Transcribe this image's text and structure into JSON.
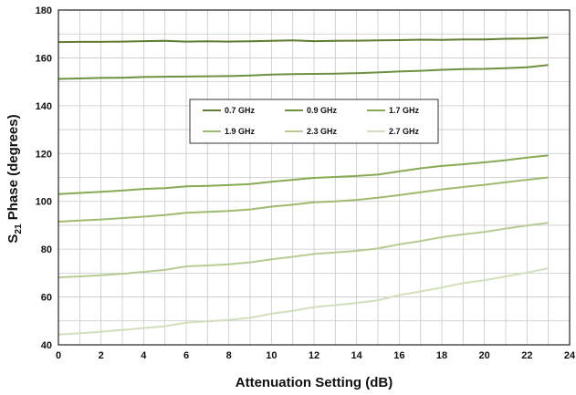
{
  "chart_data": {
    "type": "line",
    "xlabel": "Attenuation Setting (dB)",
    "ylabel": {
      "prefix": "S",
      "subscript": "21",
      "suffix": " Phase (degrees)"
    },
    "xlim": [
      0,
      24
    ],
    "ylim": [
      40,
      180
    ],
    "x_ticks": [
      "0",
      "2",
      "4",
      "6",
      "8",
      "10",
      "12",
      "14",
      "16",
      "18",
      "20",
      "22",
      "24"
    ],
    "y_ticks": [
      "40",
      "60",
      "80",
      "100",
      "120",
      "140",
      "160",
      "180"
    ],
    "grid": true,
    "legend_position": "center-top",
    "x": [
      0,
      1,
      2,
      3,
      4,
      5,
      6,
      7,
      8,
      9,
      10,
      11,
      12,
      13,
      14,
      15,
      16,
      17,
      18,
      19,
      20,
      21,
      22,
      23
    ],
    "series": [
      {
        "name": "0.7 GHz",
        "color": "#5e7d33",
        "values": [
          166.6,
          166.7,
          166.7,
          166.8,
          167.0,
          167.1,
          166.8,
          166.9,
          166.8,
          166.9,
          167.1,
          167.3,
          167.0,
          167.1,
          167.2,
          167.3,
          167.4,
          167.6,
          167.5,
          167.7,
          167.7,
          168.0,
          168.1,
          168.5
        ]
      },
      {
        "name": "0.9 GHz",
        "color": "#6e9140",
        "values": [
          151.2,
          151.4,
          151.6,
          151.7,
          152.0,
          152.1,
          152.2,
          152.3,
          152.4,
          152.6,
          153.0,
          153.2,
          153.3,
          153.4,
          153.6,
          153.9,
          154.3,
          154.6,
          155.0,
          155.3,
          155.4,
          155.7,
          156.1,
          157.0
        ]
      },
      {
        "name": "1.7 GHz",
        "color": "#88aa55",
        "values": [
          103.0,
          103.5,
          104.0,
          104.5,
          105.2,
          105.5,
          106.3,
          106.5,
          106.8,
          107.2,
          108.2,
          109.0,
          109.8,
          110.2,
          110.6,
          111.2,
          112.5,
          113.8,
          114.8,
          115.5,
          116.3,
          117.2,
          118.3,
          119.2
        ]
      },
      {
        "name": "1.9 GHz",
        "color": "#9ebb6e",
        "values": [
          91.5,
          92.0,
          92.4,
          93.0,
          93.6,
          94.3,
          95.2,
          95.6,
          96.0,
          96.6,
          97.8,
          98.6,
          99.6,
          100.0,
          100.6,
          101.5,
          102.6,
          103.8,
          105.0,
          106.0,
          106.9,
          108.0,
          109.0,
          110.0
        ]
      },
      {
        "name": "2.3 GHz",
        "color": "#b7cc92",
        "values": [
          68.2,
          68.6,
          69.1,
          69.7,
          70.5,
          71.3,
          72.8,
          73.2,
          73.7,
          74.5,
          75.8,
          76.8,
          78.0,
          78.6,
          79.3,
          80.3,
          82.0,
          83.4,
          85.0,
          86.2,
          87.2,
          88.6,
          89.9,
          91.0
        ]
      },
      {
        "name": "2.7 GHz",
        "color": "#d2dfbb",
        "values": [
          44.3,
          44.8,
          45.5,
          46.2,
          47.0,
          47.8,
          49.3,
          49.8,
          50.4,
          51.3,
          53.0,
          54.2,
          55.8,
          56.6,
          57.5,
          58.6,
          60.8,
          62.3,
          64.0,
          65.8,
          67.0,
          68.6,
          70.2,
          72.0
        ]
      }
    ]
  }
}
